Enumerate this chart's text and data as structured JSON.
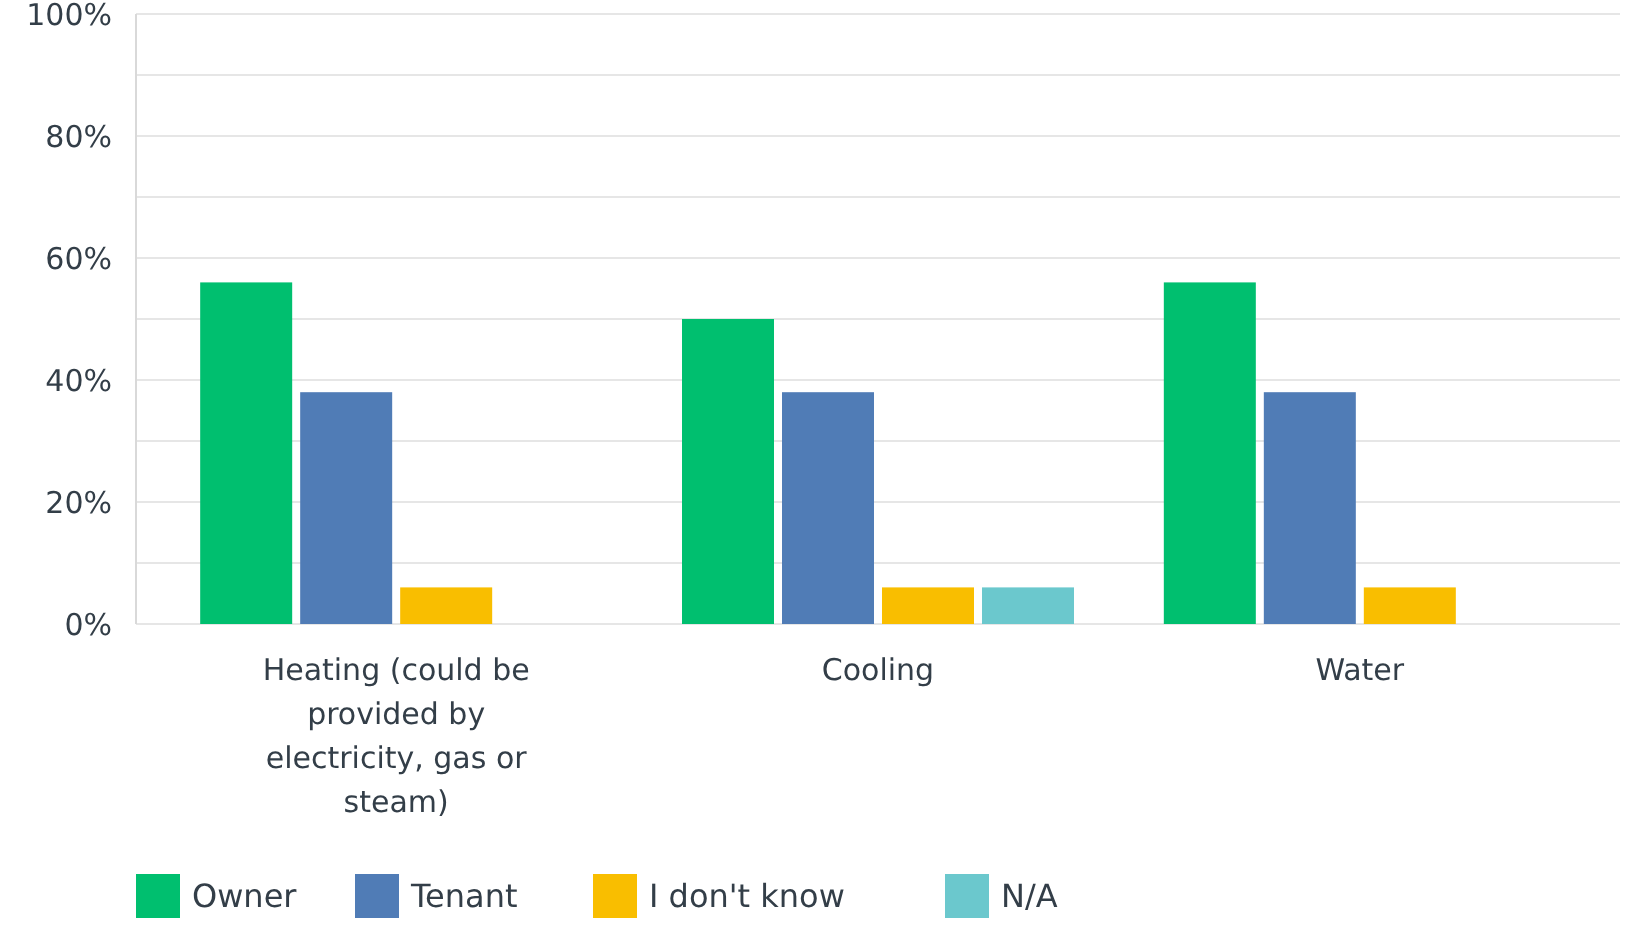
{
  "chart_data": {
    "type": "bar",
    "categories": [
      "Heating (could be provided by electricity, gas or steam)",
      "Cooling",
      "Water"
    ],
    "series": [
      {
        "name": "Owner",
        "color": "#00bf6f",
        "values": [
          56,
          50,
          56
        ]
      },
      {
        "name": "Tenant",
        "color": "#507cb6",
        "values": [
          38,
          38,
          38
        ]
      },
      {
        "name": "I don't know",
        "color": "#f9be00",
        "values": [
          6,
          6,
          6
        ]
      },
      {
        "name": "N/A",
        "color": "#6bc8cd",
        "values": [
          0,
          6,
          0
        ]
      }
    ],
    "ylim": [
      0,
      100
    ],
    "yticks": [
      {
        "value": 0,
        "label": "0%"
      },
      {
        "value": 10,
        "label": null
      },
      {
        "value": 20,
        "label": "20%"
      },
      {
        "value": 30,
        "label": null
      },
      {
        "value": 40,
        "label": "40%"
      },
      {
        "value": 50,
        "label": null
      },
      {
        "value": 60,
        "label": "60%"
      },
      {
        "value": 70,
        "label": null
      },
      {
        "value": 80,
        "label": "80%"
      },
      {
        "value": 90,
        "label": null
      },
      {
        "value": 100,
        "label": "100%"
      }
    ],
    "grid": "y",
    "legend": "bottom"
  }
}
